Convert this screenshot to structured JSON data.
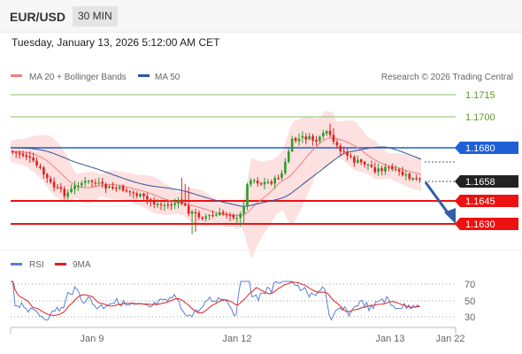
{
  "header": {
    "symbol": "EUR/USD",
    "timeframe": "30 MIN",
    "datetime": "Tuesday, January 13, 2026 5:12:00 AM CET"
  },
  "legend": {
    "ma20_label": "MA 20 + Bollinger Bands",
    "ma50_label": "MA 50",
    "copyright": "Research © 2026 Trading Central",
    "colors": {
      "ma20": "#f08080",
      "ma50": "#2f5597"
    }
  },
  "levels": [
    {
      "value": "1.1715",
      "style": "thin-green"
    },
    {
      "value": "1.1700",
      "style": "thin-green"
    },
    {
      "value": "1.1680",
      "style": "blue-tag"
    },
    {
      "value": "1.1658",
      "style": "dark-tag"
    },
    {
      "value": "1.1645",
      "style": "red-tag"
    },
    {
      "value": "1.1630",
      "style": "red-tag"
    }
  ],
  "rsi_panel": {
    "rsi_label": "RSI",
    "ma9_label": "9MA",
    "ticks": [
      "70",
      "50",
      "30"
    ],
    "colors": {
      "rsi": "#5a7fd6",
      "ma9": "#e02020"
    }
  },
  "x_axis": {
    "labels": [
      "Jan 9",
      "Jan 12",
      "Jan 13",
      "Jan 22"
    ]
  },
  "colors": {
    "bull": "#2a9d2a",
    "bear": "#e02020",
    "band": "#fde0e0",
    "support": "#ee1111",
    "resistance_blue": "#1f5fd6",
    "arrow": "#2f5fa7"
  }
}
